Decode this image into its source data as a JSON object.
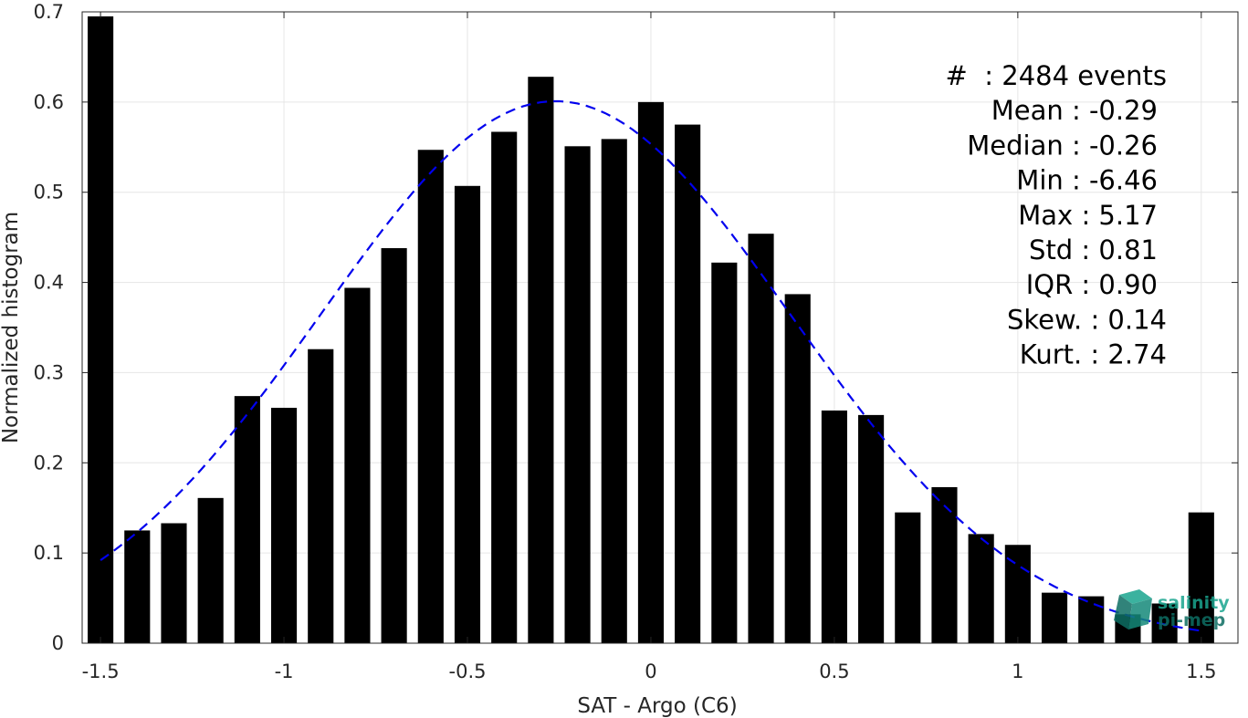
{
  "chart_data": {
    "type": "bar",
    "xlabel": "SAT - Argo (C6)",
    "ylabel": "Normalized histogram",
    "xlim": [
      -1.55,
      1.6
    ],
    "ylim": [
      0,
      0.7
    ],
    "grid": true,
    "x_ticks": [
      -1.5,
      -1,
      -0.5,
      0,
      0.5,
      1,
      1.5
    ],
    "x_tick_labels": [
      "-1.5",
      "-1",
      "-0.5",
      "0",
      "0.5",
      "1",
      "1.5"
    ],
    "y_ticks": [
      0,
      0.1,
      0.2,
      0.3,
      0.4,
      0.5,
      0.6,
      0.7
    ],
    "y_tick_labels": [
      "0",
      "0.1",
      "0.2",
      "0.3",
      "0.4",
      "0.5",
      "0.6",
      "0.7"
    ],
    "bar_width": 0.07,
    "bins": [
      {
        "x": -1.5,
        "value": 0.695
      },
      {
        "x": -1.4,
        "value": 0.125
      },
      {
        "x": -1.3,
        "value": 0.133
      },
      {
        "x": -1.2,
        "value": 0.161
      },
      {
        "x": -1.1,
        "value": 0.274
      },
      {
        "x": -1.0,
        "value": 0.261
      },
      {
        "x": -0.9,
        "value": 0.326
      },
      {
        "x": -0.8,
        "value": 0.394
      },
      {
        "x": -0.7,
        "value": 0.438
      },
      {
        "x": -0.6,
        "value": 0.547
      },
      {
        "x": -0.5,
        "value": 0.507
      },
      {
        "x": -0.4,
        "value": 0.567
      },
      {
        "x": -0.3,
        "value": 0.628
      },
      {
        "x": -0.2,
        "value": 0.551
      },
      {
        "x": -0.1,
        "value": 0.559
      },
      {
        "x": 0.0,
        "value": 0.6
      },
      {
        "x": 0.1,
        "value": 0.575
      },
      {
        "x": 0.2,
        "value": 0.422
      },
      {
        "x": 0.3,
        "value": 0.454
      },
      {
        "x": 0.4,
        "value": 0.387
      },
      {
        "x": 0.5,
        "value": 0.258
      },
      {
        "x": 0.6,
        "value": 0.253
      },
      {
        "x": 0.7,
        "value": 0.145
      },
      {
        "x": 0.8,
        "value": 0.173
      },
      {
        "x": 0.9,
        "value": 0.121
      },
      {
        "x": 1.0,
        "value": 0.109
      },
      {
        "x": 1.1,
        "value": 0.056
      },
      {
        "x": 1.2,
        "value": 0.052
      },
      {
        "x": 1.3,
        "value": 0.032
      },
      {
        "x": 1.4,
        "value": 0.044
      },
      {
        "x": 1.5,
        "value": 0.145
      }
    ],
    "fit_curve": {
      "style": "dashed",
      "color": "#0000ee",
      "mean": -0.26,
      "std": 0.64,
      "peak": 0.601,
      "x_range": [
        -1.5,
        1.5
      ]
    },
    "bar_color": "#000000",
    "stats": [
      "#  : 2484 events",
      "Mean : -0.29",
      "Median : -0.26",
      "Min : -6.46",
      "Max : 5.17",
      "Std : 0.81",
      "IQR : 0.90",
      "Skew. : 0.14",
      "Kurt. : 2.74"
    ]
  },
  "logo": {
    "line1": "salinity",
    "line2": "pi-mep",
    "color": "#1aa58f",
    "dark_color": "#0e6e63"
  }
}
